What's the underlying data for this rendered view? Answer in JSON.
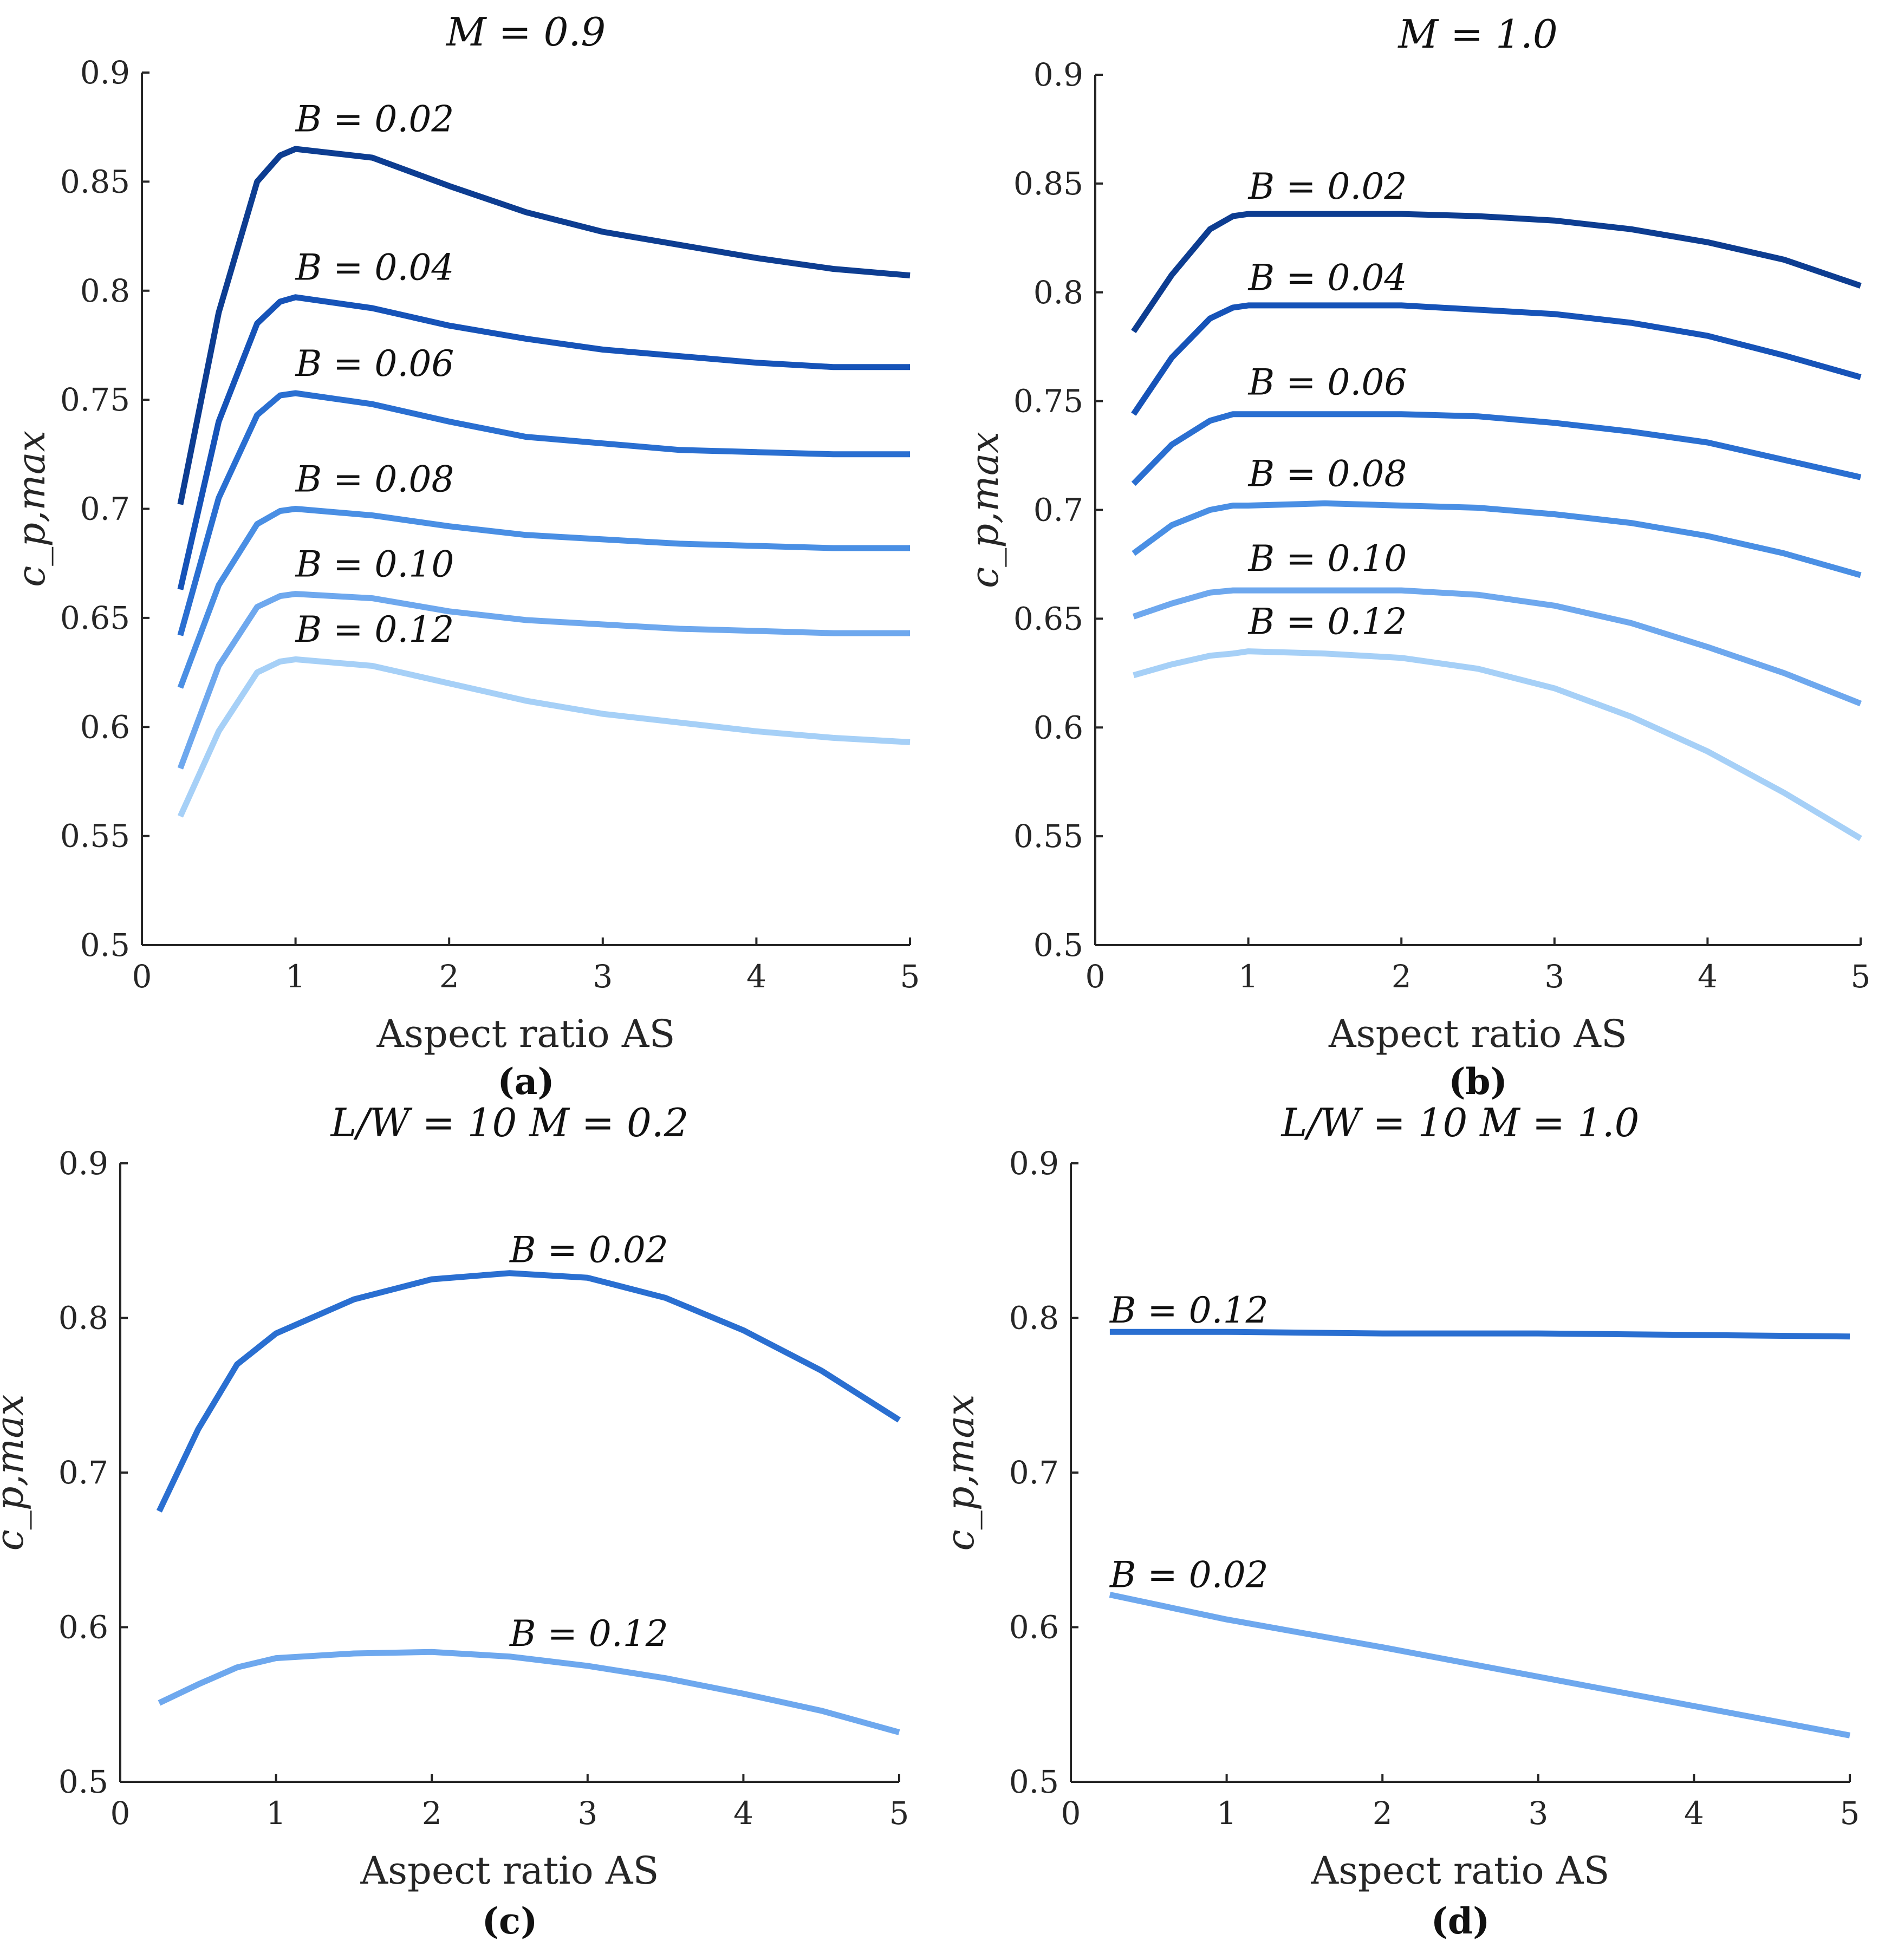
{
  "chart_data": [
    {
      "type": "line",
      "panel_label": "(a)",
      "title": "M = 0.9",
      "xlabel": "Aspect ratio AS",
      "ylabel": "c_p,max",
      "xlim": [
        0,
        5
      ],
      "ylim": [
        0.5,
        0.9
      ],
      "xticks": [
        "0",
        "1",
        "2",
        "3",
        "4",
        "5"
      ],
      "yticks": [
        "0.5",
        "0.55",
        "0.6",
        "0.65",
        "0.7",
        "0.75",
        "0.8",
        "0.85",
        "0.9"
      ],
      "grid": false,
      "series": [
        {
          "name": "B = 0.02",
          "color": "#0d3d91",
          "x": [
            0.25,
            0.5,
            0.75,
            0.9,
            1,
            1.5,
            2,
            2.5,
            3,
            3.5,
            4,
            4.5,
            5
          ],
          "y": [
            0.702,
            0.79,
            0.85,
            0.862,
            0.865,
            0.861,
            0.848,
            0.836,
            0.827,
            0.821,
            0.815,
            0.81,
            0.807
          ]
        },
        {
          "name": "B = 0.04",
          "color": "#1653b8",
          "x": [
            0.25,
            0.5,
            0.75,
            0.9,
            1,
            1.5,
            2,
            2.5,
            3,
            3.5,
            4,
            4.5,
            5
          ],
          "y": [
            0.663,
            0.74,
            0.785,
            0.795,
            0.797,
            0.792,
            0.784,
            0.778,
            0.773,
            0.77,
            0.767,
            0.765,
            0.765
          ]
        },
        {
          "name": "B = 0.06",
          "color": "#2a6fd1",
          "x": [
            0.25,
            0.5,
            0.75,
            0.9,
            1,
            1.5,
            2,
            2.5,
            3,
            3.5,
            4,
            4.5,
            5
          ],
          "y": [
            0.642,
            0.705,
            0.743,
            0.752,
            0.753,
            0.748,
            0.74,
            0.733,
            0.73,
            0.727,
            0.726,
            0.725,
            0.725
          ]
        },
        {
          "name": "B = 0.08",
          "color": "#4a8fe4",
          "x": [
            0.25,
            0.5,
            0.75,
            0.9,
            1,
            1.5,
            2,
            2.5,
            3,
            3.5,
            4,
            4.5,
            5
          ],
          "y": [
            0.618,
            0.665,
            0.693,
            0.699,
            0.7,
            0.697,
            0.692,
            0.688,
            0.686,
            0.684,
            0.683,
            0.682,
            0.682
          ]
        },
        {
          "name": "B = 0.10",
          "color": "#6ea8ee",
          "x": [
            0.25,
            0.5,
            0.75,
            0.9,
            1,
            1.5,
            2,
            2.5,
            3,
            3.5,
            4,
            4.5,
            5
          ],
          "y": [
            0.581,
            0.628,
            0.655,
            0.66,
            0.661,
            0.659,
            0.653,
            0.649,
            0.647,
            0.645,
            0.644,
            0.643,
            0.643
          ]
        },
        {
          "name": "B = 0.12",
          "color": "#a6d0f7",
          "x": [
            0.25,
            0.5,
            0.75,
            0.9,
            1,
            1.5,
            2,
            2.5,
            3,
            3.5,
            4,
            4.5,
            5
          ],
          "y": [
            0.559,
            0.598,
            0.625,
            0.63,
            0.631,
            0.628,
            0.62,
            0.612,
            0.606,
            0.602,
            0.598,
            0.595,
            0.593
          ]
        }
      ],
      "annotations": [
        {
          "text": "B = 0.02",
          "x": 1.0,
          "y": 0.873
        },
        {
          "text": "B = 0.04",
          "x": 1.0,
          "y": 0.805
        },
        {
          "text": "B = 0.06",
          "x": 1.0,
          "y": 0.761
        },
        {
          "text": "B = 0.08",
          "x": 1.0,
          "y": 0.708
        },
        {
          "text": "B = 0.10",
          "x": 1.0,
          "y": 0.669
        },
        {
          "text": "B = 0.12",
          "x": 1.0,
          "y": 0.639
        }
      ]
    },
    {
      "type": "line",
      "panel_label": "(b)",
      "title": "M = 1.0",
      "xlabel": "Aspect ratio AS",
      "ylabel": "c_p,max",
      "xlim": [
        0,
        5
      ],
      "ylim": [
        0.5,
        0.9
      ],
      "xticks": [
        "0",
        "1",
        "2",
        "3",
        "4",
        "5"
      ],
      "yticks": [
        "0.5",
        "0.55",
        "0.6",
        "0.65",
        "0.7",
        "0.75",
        "0.8",
        "0.85",
        "0.9"
      ],
      "grid": false,
      "series": [
        {
          "name": "B = 0.02",
          "color": "#0d3d91",
          "x": [
            0.25,
            0.5,
            0.75,
            0.9,
            1,
            1.5,
            2,
            2.5,
            3,
            3.5,
            4,
            4.5,
            5
          ],
          "y": [
            0.782,
            0.808,
            0.829,
            0.835,
            0.836,
            0.836,
            0.836,
            0.835,
            0.833,
            0.829,
            0.823,
            0.815,
            0.803
          ]
        },
        {
          "name": "B = 0.04",
          "color": "#1653b8",
          "x": [
            0.25,
            0.5,
            0.75,
            0.9,
            1,
            1.5,
            2,
            2.5,
            3,
            3.5,
            4,
            4.5,
            5
          ],
          "y": [
            0.744,
            0.77,
            0.788,
            0.793,
            0.794,
            0.794,
            0.794,
            0.792,
            0.79,
            0.786,
            0.78,
            0.771,
            0.761
          ]
        },
        {
          "name": "B = 0.06",
          "color": "#2a6fd1",
          "x": [
            0.25,
            0.5,
            0.75,
            0.9,
            1,
            1.5,
            2,
            2.5,
            3,
            3.5,
            4,
            4.5,
            5
          ],
          "y": [
            0.712,
            0.73,
            0.741,
            0.744,
            0.744,
            0.744,
            0.744,
            0.743,
            0.74,
            0.736,
            0.731,
            0.723,
            0.715
          ]
        },
        {
          "name": "B = 0.08",
          "color": "#4a8fe4",
          "x": [
            0.25,
            0.5,
            0.75,
            0.9,
            1,
            1.5,
            2,
            2.5,
            3,
            3.5,
            4,
            4.5,
            5
          ],
          "y": [
            0.68,
            0.693,
            0.7,
            0.702,
            0.702,
            0.703,
            0.702,
            0.701,
            0.698,
            0.694,
            0.688,
            0.68,
            0.67
          ]
        },
        {
          "name": "B = 0.10",
          "color": "#6ea8ee",
          "x": [
            0.25,
            0.5,
            0.75,
            0.9,
            1,
            1.5,
            2,
            2.5,
            3,
            3.5,
            4,
            4.5,
            5
          ],
          "y": [
            0.651,
            0.657,
            0.662,
            0.663,
            0.663,
            0.663,
            0.663,
            0.661,
            0.656,
            0.648,
            0.637,
            0.625,
            0.611
          ]
        },
        {
          "name": "B = 0.12",
          "color": "#a6d0f7",
          "x": [
            0.25,
            0.5,
            0.75,
            0.9,
            1,
            1.5,
            2,
            2.5,
            3,
            3.5,
            4,
            4.5,
            5
          ],
          "y": [
            0.624,
            0.629,
            0.633,
            0.634,
            0.635,
            0.634,
            0.632,
            0.627,
            0.618,
            0.605,
            0.589,
            0.57,
            0.549
          ]
        }
      ],
      "annotations": [
        {
          "text": "B = 0.02",
          "x": 1.0,
          "y": 0.843
        },
        {
          "text": "B = 0.04",
          "x": 1.0,
          "y": 0.801
        },
        {
          "text": "B = 0.06",
          "x": 1.0,
          "y": 0.753
        },
        {
          "text": "B = 0.08",
          "x": 1.0,
          "y": 0.711
        },
        {
          "text": "B = 0.10",
          "x": 1.0,
          "y": 0.672
        },
        {
          "text": "B = 0.12",
          "x": 1.0,
          "y": 0.643
        }
      ]
    },
    {
      "type": "line",
      "panel_label": "(c)",
      "title": "L/W = 10 M = 0.2",
      "xlabel": "Aspect ratio AS",
      "ylabel": "c_p,max",
      "xlim": [
        0,
        5
      ],
      "ylim": [
        0.5,
        0.9
      ],
      "xticks": [
        "0",
        "1",
        "2",
        "3",
        "4",
        "5"
      ],
      "yticks": [
        "0.5",
        "0.6",
        "0.7",
        "0.8",
        "0.9"
      ],
      "grid": false,
      "series": [
        {
          "name": "B = 0.02",
          "color": "#2a6fd1",
          "x": [
            0.25,
            0.5,
            0.75,
            1,
            1.5,
            2,
            2.5,
            3,
            3.5,
            4,
            4.5,
            5
          ],
          "y": [
            0.675,
            0.728,
            0.77,
            0.79,
            0.812,
            0.825,
            0.829,
            0.826,
            0.813,
            0.792,
            0.766,
            0.734
          ]
        },
        {
          "name": "B = 0.12",
          "color": "#6ea8ee",
          "x": [
            0.25,
            0.5,
            0.75,
            1,
            1.5,
            2,
            2.5,
            3,
            3.5,
            4,
            4.5,
            5
          ],
          "y": [
            0.551,
            0.563,
            0.574,
            0.58,
            0.583,
            0.584,
            0.581,
            0.575,
            0.567,
            0.557,
            0.546,
            0.532
          ]
        }
      ],
      "annotations": [
        {
          "text": "B = 0.02",
          "x": 2.5,
          "y": 0.836
        },
        {
          "text": "B = 0.12",
          "x": 2.5,
          "y": 0.588
        }
      ]
    },
    {
      "type": "line",
      "panel_label": "(d)",
      "title": "L/W = 10 M = 1.0",
      "xlabel": "Aspect ratio AS",
      "ylabel": "c_p,max",
      "xlim": [
        0,
        5
      ],
      "ylim": [
        0.5,
        0.9
      ],
      "xticks": [
        "0",
        "1",
        "2",
        "3",
        "4",
        "5"
      ],
      "yticks": [
        "0.5",
        "0.6",
        "0.7",
        "0.8",
        "0.9"
      ],
      "grid": false,
      "series": [
        {
          "name": "B = 0.12",
          "color": "#2a6fd1",
          "x": [
            0.25,
            1,
            2,
            3,
            4,
            5
          ],
          "y": [
            0.791,
            0.791,
            0.79,
            0.79,
            0.789,
            0.788
          ]
        },
        {
          "name": "B = 0.02",
          "color": "#6ea8ee",
          "x": [
            0.25,
            1,
            2,
            3,
            4,
            5
          ],
          "y": [
            0.621,
            0.605,
            0.587,
            0.568,
            0.549,
            0.53
          ]
        }
      ],
      "annotations": [
        {
          "text": "B = 0.12",
          "x": 0.25,
          "y": 0.797
        },
        {
          "text": "B = 0.02",
          "x": 0.25,
          "y": 0.626
        }
      ]
    }
  ]
}
